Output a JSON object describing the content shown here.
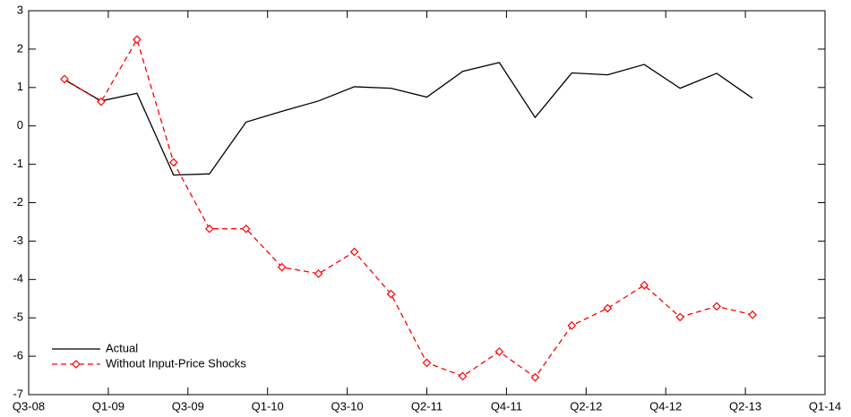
{
  "chart_data": {
    "type": "line",
    "x": [
      0.45,
      0.91,
      1.36,
      1.82,
      2.27,
      2.73,
      3.18,
      3.64,
      4.09,
      4.55,
      5,
      5.45,
      5.91,
      6.36,
      6.82,
      7.27,
      7.73,
      8.18,
      8.64,
      9.09
    ],
    "series": [
      {
        "name": "Actual",
        "color": "#000000",
        "dash": false,
        "marker": false,
        "values": [
          1.2,
          0.65,
          0.85,
          -1.28,
          -1.25,
          0.1,
          0.38,
          0.65,
          1.02,
          0.98,
          0.75,
          1.42,
          1.65,
          0.22,
          1.38,
          1.33,
          1.6,
          0.98,
          1.37,
          0.72
        ]
      },
      {
        "name": "Without Input-Price Shocks",
        "color": "#ff0000",
        "dash": true,
        "marker": true,
        "values": [
          1.22,
          0.63,
          2.25,
          -0.95,
          -2.68,
          -2.68,
          -3.68,
          -3.85,
          -3.28,
          -4.38,
          -6.17,
          -6.52,
          -5.88,
          -6.55,
          -5.2,
          -4.75,
          -4.15,
          -4.98,
          -4.7,
          -4.92
        ]
      }
    ],
    "xlim": [
      0,
      10
    ],
    "xticks": [
      {
        "value": 0,
        "label": "Q3-08"
      },
      {
        "value": 1,
        "label": "Q1-09"
      },
      {
        "value": 2,
        "label": "Q3-09"
      },
      {
        "value": 3,
        "label": "Q1-10"
      },
      {
        "value": 4,
        "label": "Q3-10"
      },
      {
        "value": 5,
        "label": "Q2-11"
      },
      {
        "value": 6,
        "label": "Q4-11"
      },
      {
        "value": 7,
        "label": "Q2-12"
      },
      {
        "value": 8,
        "label": "Q4-12"
      },
      {
        "value": 9,
        "label": "Q2-13"
      },
      {
        "value": 10,
        "label": "Q1-14"
      }
    ],
    "ylim": [
      -7,
      3
    ],
    "yticks": [
      -7,
      -6,
      -5,
      -4,
      -3,
      -2,
      -1,
      0,
      1,
      2,
      3
    ],
    "legend": "lower left"
  }
}
